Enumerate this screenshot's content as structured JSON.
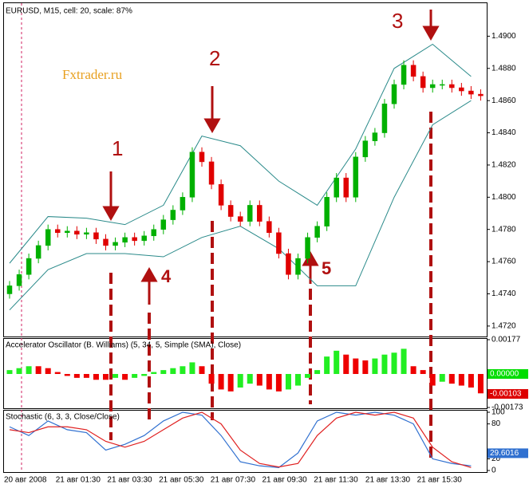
{
  "chart_data": [
    {
      "type": "candlestick",
      "title": "EURUSD, M15, cell: 20, scale: 87%",
      "annotations": [
        "1",
        "2",
        "3",
        "4",
        "5",
        "Fxtrader.ru"
      ],
      "open": [
        1.474,
        1.4745,
        1.4752,
        1.4762,
        1.477,
        1.478,
        1.4778,
        1.4779,
        1.4777,
        1.4778,
        1.4774,
        1.477,
        1.4772,
        1.4775,
        1.4773,
        1.4776,
        1.478,
        1.4786,
        1.4792,
        1.48,
        1.4828,
        1.4822,
        1.4808,
        1.4795,
        1.4788,
        1.4785,
        1.4795,
        1.4785,
        1.4778,
        1.4765,
        1.4752,
        1.4762,
        1.4775,
        1.4782,
        1.48,
        1.4812,
        1.48,
        1.4825,
        1.4835,
        1.484,
        1.4858,
        1.487,
        1.4882,
        1.4875,
        1.4868,
        1.487,
        1.487,
        1.4868,
        1.4866,
        1.4864
      ],
      "high": [
        1.4748,
        1.4755,
        1.4765,
        1.4773,
        1.4783,
        1.4783,
        1.4782,
        1.4782,
        1.4781,
        1.4781,
        1.4777,
        1.4775,
        1.4778,
        1.4778,
        1.4779,
        1.4783,
        1.4789,
        1.4795,
        1.4803,
        1.4831,
        1.4831,
        1.4825,
        1.4811,
        1.4798,
        1.4791,
        1.4798,
        1.4798,
        1.4788,
        1.4781,
        1.4768,
        1.4765,
        1.4778,
        1.4785,
        1.4803,
        1.4815,
        1.4815,
        1.4828,
        1.4838,
        1.4843,
        1.4861,
        1.4873,
        1.4885,
        1.4885,
        1.4878,
        1.4873,
        1.4873,
        1.4873,
        1.4871,
        1.4869,
        1.4867
      ],
      "low": [
        1.4737,
        1.4742,
        1.4749,
        1.4759,
        1.4767,
        1.4775,
        1.4775,
        1.4774,
        1.4774,
        1.4771,
        1.4767,
        1.4767,
        1.4769,
        1.477,
        1.477,
        1.4773,
        1.4777,
        1.4783,
        1.4789,
        1.4797,
        1.4819,
        1.4805,
        1.4792,
        1.4785,
        1.4782,
        1.4782,
        1.4782,
        1.4775,
        1.4762,
        1.4749,
        1.4749,
        1.4759,
        1.4772,
        1.4779,
        1.4797,
        1.4797,
        1.4797,
        1.4822,
        1.4832,
        1.4837,
        1.4855,
        1.4867,
        1.4872,
        1.4865,
        1.4865,
        1.4867,
        1.4865,
        1.4863,
        1.4861,
        1.486
      ],
      "close": [
        1.4745,
        1.4752,
        1.4762,
        1.477,
        1.478,
        1.4778,
        1.4779,
        1.4777,
        1.4778,
        1.4774,
        1.477,
        1.4772,
        1.4775,
        1.4773,
        1.4776,
        1.478,
        1.4786,
        1.4792,
        1.48,
        1.4828,
        1.4822,
        1.4808,
        1.4795,
        1.4788,
        1.4785,
        1.4795,
        1.4785,
        1.4778,
        1.4765,
        1.4752,
        1.4762,
        1.4775,
        1.4782,
        1.48,
        1.4812,
        1.48,
        1.4825,
        1.4835,
        1.484,
        1.4858,
        1.487,
        1.4882,
        1.4875,
        1.4868,
        1.487,
        1.487,
        1.4868,
        1.4866,
        1.4864,
        1.4863
      ],
      "up_color": "#00b000",
      "down_color": "#e00000",
      "upper_band": {
        "x": [
          0,
          4,
          8,
          12,
          16,
          20,
          24,
          28,
          32,
          36,
          40,
          44,
          48
        ],
        "values": [
          1.4759,
          1.4788,
          1.4787,
          1.4783,
          1.4795,
          1.4838,
          1.4832,
          1.481,
          1.4795,
          1.483,
          1.488,
          1.4895,
          1.4875
        ],
        "color": "#2a8a8a"
      },
      "lower_band": {
        "x": [
          0,
          4,
          8,
          12,
          16,
          20,
          24,
          28,
          32,
          36,
          40,
          44,
          48
        ],
        "values": [
          1.473,
          1.4755,
          1.4765,
          1.4765,
          1.4763,
          1.4775,
          1.4782,
          1.4768,
          1.4745,
          1.4745,
          1.48,
          1.4845,
          1.486
        ],
        "color": "#2a8a8a"
      },
      "ylim": [
        1.4714,
        1.492
      ],
      "yticks": [
        {
          "value": 1.472,
          "label": "1.4720"
        },
        {
          "value": 1.474,
          "label": "1.4740"
        },
        {
          "value": 1.476,
          "label": "1.4760"
        },
        {
          "value": 1.478,
          "label": "1.4780"
        },
        {
          "value": 1.48,
          "label": "1.4800"
        },
        {
          "value": 1.482,
          "label": "1.4820"
        },
        {
          "value": 1.484,
          "label": "1.4840"
        },
        {
          "value": 1.486,
          "label": "1.4860"
        },
        {
          "value": 1.488,
          "label": "1.4880"
        },
        {
          "value": 1.49,
          "label": "1.4900"
        }
      ]
    },
    {
      "type": "bar",
      "title": "Accelerator Oscillator (B. Williams) (5, 34, 5, Simple (SMA), Close)",
      "values": [
        0.0002,
        0.0003,
        0.0004,
        0.0004,
        0.0003,
        0.0001,
        -0.0001,
        -0.0002,
        -0.0002,
        -0.0003,
        -0.0003,
        -0.0002,
        -0.0003,
        -0.0002,
        -0.0001,
        0.0001,
        0.0002,
        0.0003,
        0.0004,
        0.0006,
        0.0004,
        -0.0005,
        -0.0008,
        -0.0009,
        -0.0007,
        -0.0005,
        -0.0006,
        -0.0008,
        -0.0009,
        -0.0008,
        -0.0006,
        -0.0002,
        0.0002,
        0.0009,
        0.0012,
        0.001,
        0.0008,
        0.0007,
        0.0008,
        0.001,
        0.0011,
        0.0013,
        0.0004,
        0.0002,
        -0.0006,
        -0.0004,
        -0.0005,
        -0.0006,
        -0.0007,
        -0.001
      ],
      "up_color": "#22ee22",
      "down_color": "#ee0000",
      "ylim": [
        -0.00173,
        0.00177
      ],
      "yticks": [
        -0.00173,
        0.00177
      ],
      "markers": [
        {
          "value": 0,
          "label": "0.00000",
          "color": "#00dd00"
        },
        {
          "value": -0.00103,
          "label": "-0.00103",
          "color": "#dd0000"
        }
      ]
    },
    {
      "type": "line",
      "title": "Stochastic (6, 3, 3, Close/Close)",
      "x": [
        0,
        2,
        4,
        6,
        8,
        10,
        12,
        14,
        16,
        18,
        20,
        22,
        24,
        26,
        28,
        30,
        32,
        34,
        36,
        38,
        40,
        42,
        44,
        46,
        48
      ],
      "series": [
        {
          "color": "#3070d0",
          "values": [
            75,
            60,
            85,
            70,
            65,
            35,
            45,
            60,
            85,
            100,
            95,
            60,
            15,
            8,
            5,
            30,
            85,
            100,
            95,
            100,
            95,
            80,
            20,
            12,
            8
          ]
        },
        {
          "color": "#e02020",
          "values": [
            70,
            65,
            75,
            75,
            70,
            50,
            40,
            50,
            70,
            90,
            100,
            80,
            35,
            12,
            6,
            12,
            60,
            90,
            100,
            95,
            100,
            90,
            40,
            15,
            5
          ]
        }
      ],
      "ylim": [
        0,
        100
      ],
      "yticks": [
        0,
        20,
        80,
        100
      ],
      "markers": [
        {
          "value": 29.6016,
          "label": "29.6016",
          "color": "#3070d0"
        }
      ],
      "x_labels": [
        "20 авг 2008",
        "21 авг 01:30",
        "21 авг 03:30",
        "21 авг 05:30",
        "21 авг 07:30",
        "21 авг 09:30",
        "21 авг 11:30",
        "21 авг 13:30",
        "21 авг 15:30"
      ]
    }
  ]
}
